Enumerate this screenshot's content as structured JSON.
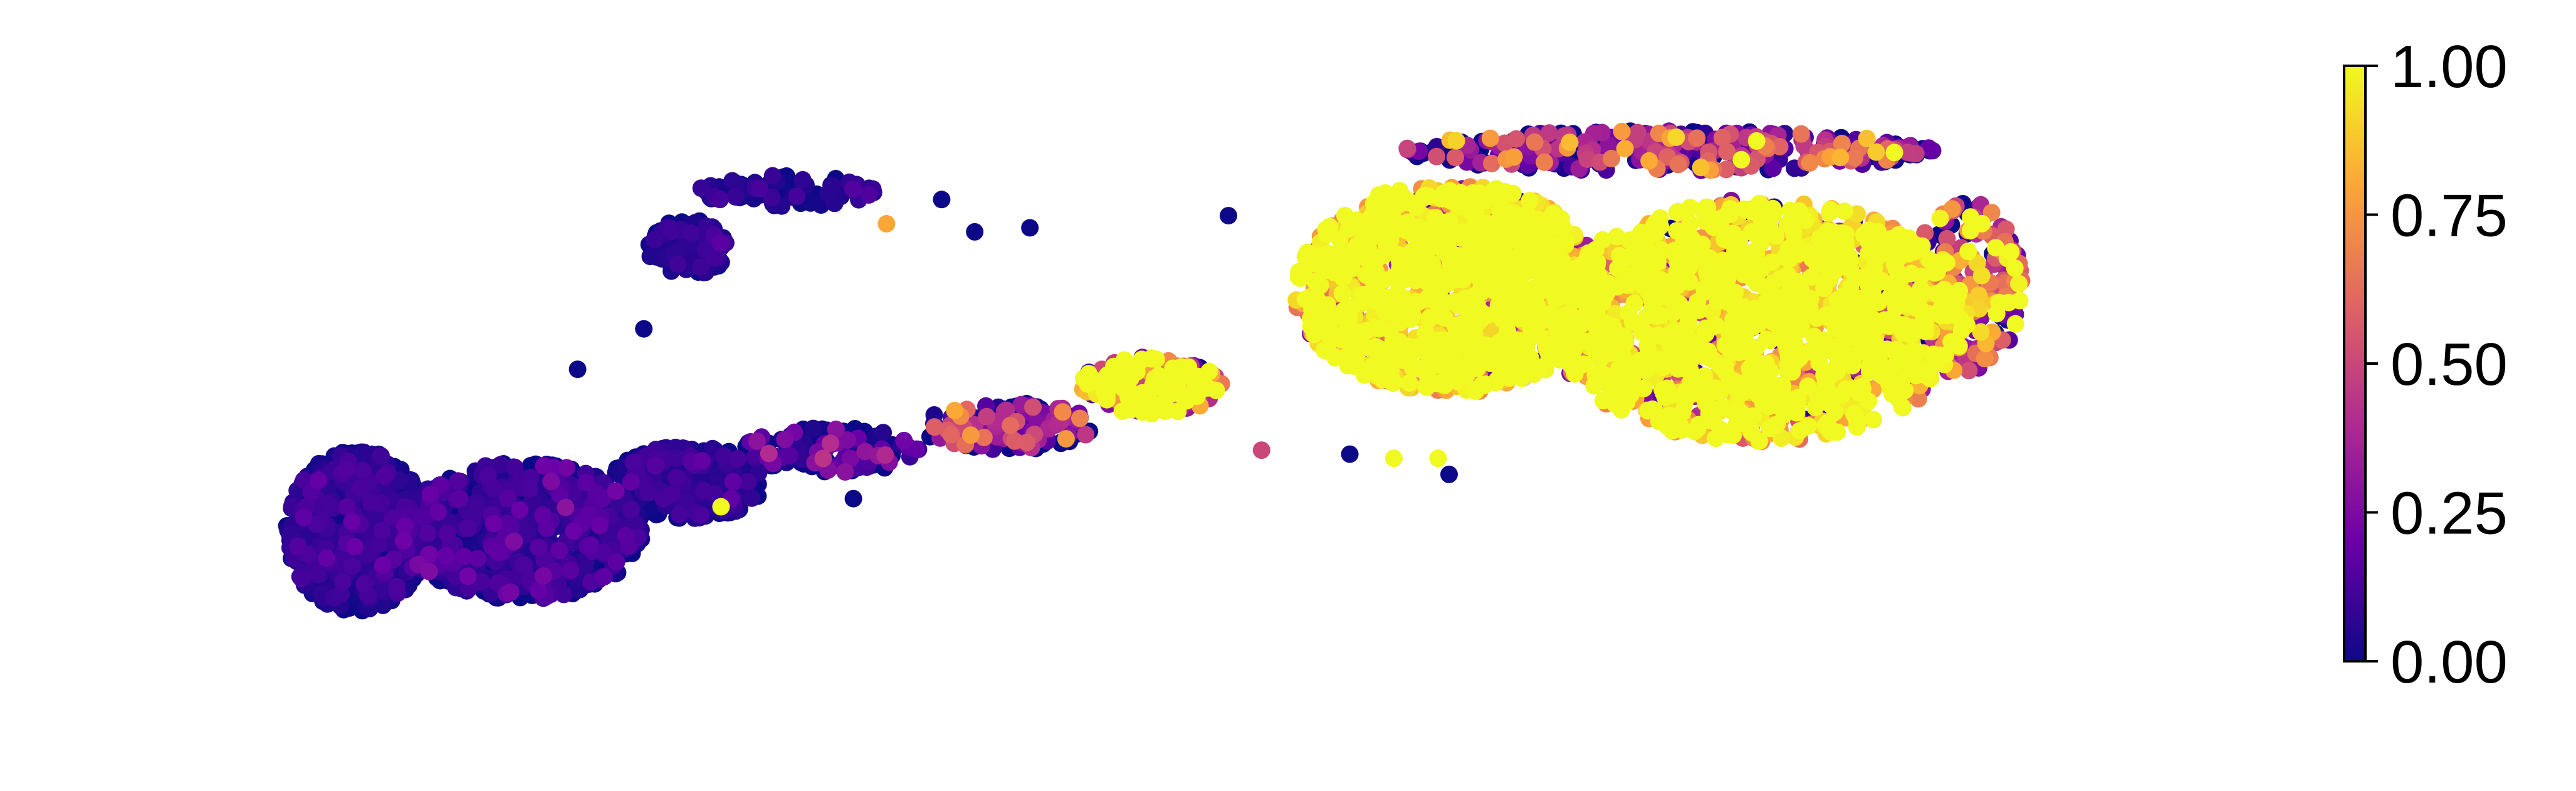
{
  "chart_data": {
    "type": "scatter",
    "title": "",
    "xlabel": "",
    "ylabel": "",
    "axes_visible": false,
    "grid": false,
    "colormap": "plasma",
    "colormap_stops": [
      "#0d0887",
      "#6a00a8",
      "#b12a90",
      "#e16462",
      "#fca636",
      "#f0f921"
    ],
    "colorbar": {
      "position": "right",
      "range": [
        0.0,
        1.0
      ],
      "ticks": [
        0.0,
        0.25,
        0.5,
        0.75,
        1.0
      ],
      "tick_labels": [
        "0.00",
        "0.25",
        "0.50",
        "0.75",
        "1.00"
      ]
    },
    "xlim": [
      0,
      100
    ],
    "ylim": [
      0,
      100
    ],
    "clusters": [
      {
        "name": "left-blob-a",
        "cx": 10.5,
        "cy": 32,
        "rx": 3.2,
        "ry": 10,
        "n": 700,
        "value": 0.02,
        "spread": 0.06
      },
      {
        "name": "left-blob-b",
        "cx": 18,
        "cy": 32,
        "rx": 5.5,
        "ry": 8.5,
        "n": 800,
        "value": 0.03,
        "spread": 0.08
      },
      {
        "name": "left-tail",
        "cx": 25.5,
        "cy": 38,
        "rx": 3.5,
        "ry": 4.5,
        "n": 250,
        "value": 0.03,
        "spread": 0.06
      },
      {
        "name": "bridge-1",
        "cx": 32,
        "cy": 42,
        "rx": 4,
        "ry": 2.8,
        "n": 120,
        "value": 0.05,
        "spread": 0.15
      },
      {
        "name": "bridge-2",
        "cx": 40,
        "cy": 45,
        "rx": 4,
        "ry": 3,
        "n": 140,
        "value": 0.2,
        "spread": 0.35
      },
      {
        "name": "bridge-3",
        "cx": 46.5,
        "cy": 50,
        "rx": 3.2,
        "ry": 3.5,
        "n": 160,
        "value": 0.55,
        "spread": 0.35
      },
      {
        "name": "upper-branch",
        "cx": 25.5,
        "cy": 67,
        "rx": 1.8,
        "ry": 3.5,
        "n": 110,
        "value": 0.03,
        "spread": 0.05
      },
      {
        "name": "upper-branch-top",
        "cx": 30,
        "cy": 74,
        "rx": 4,
        "ry": 2,
        "n": 80,
        "value": 0.03,
        "spread": 0.05
      },
      {
        "name": "right-mass-left",
        "cx": 60,
        "cy": 62,
        "rx": 7,
        "ry": 13,
        "n": 1100,
        "value": 0.92,
        "spread": 0.15
      },
      {
        "name": "right-mass-right",
        "cx": 74,
        "cy": 58,
        "rx": 9.5,
        "ry": 15,
        "n": 1400,
        "value": 0.88,
        "spread": 0.2
      },
      {
        "name": "right-top-edge",
        "cx": 70,
        "cy": 79,
        "rx": 12,
        "ry": 2.5,
        "n": 350,
        "value": 0.2,
        "spread": 0.35
      },
      {
        "name": "right-edge",
        "cx": 83.5,
        "cy": 62,
        "rx": 2.5,
        "ry": 11,
        "n": 220,
        "value": 0.45,
        "spread": 0.35
      }
    ],
    "outliers": [
      {
        "x": 50,
        "y": 71,
        "value": 0.0
      },
      {
        "x": 37,
        "y": 73,
        "value": 0.0
      },
      {
        "x": 34.5,
        "y": 70,
        "value": 0.8
      },
      {
        "x": 38.5,
        "y": 69,
        "value": 0.0
      },
      {
        "x": 41,
        "y": 69.5,
        "value": 0.0
      },
      {
        "x": 20.5,
        "y": 52,
        "value": 0.0
      },
      {
        "x": 23.5,
        "y": 57,
        "value": 0.0
      },
      {
        "x": 27,
        "y": 35,
        "value": 1.0
      },
      {
        "x": 51.5,
        "y": 42,
        "value": 0.5
      },
      {
        "x": 59.5,
        "y": 41,
        "value": 1.0
      },
      {
        "x": 57.5,
        "y": 41,
        "value": 1.0
      },
      {
        "x": 60,
        "y": 39,
        "value": 0.0
      },
      {
        "x": 55.5,
        "y": 41.5,
        "value": 0.0
      },
      {
        "x": 33,
        "y": 36,
        "value": 0.0
      }
    ]
  }
}
